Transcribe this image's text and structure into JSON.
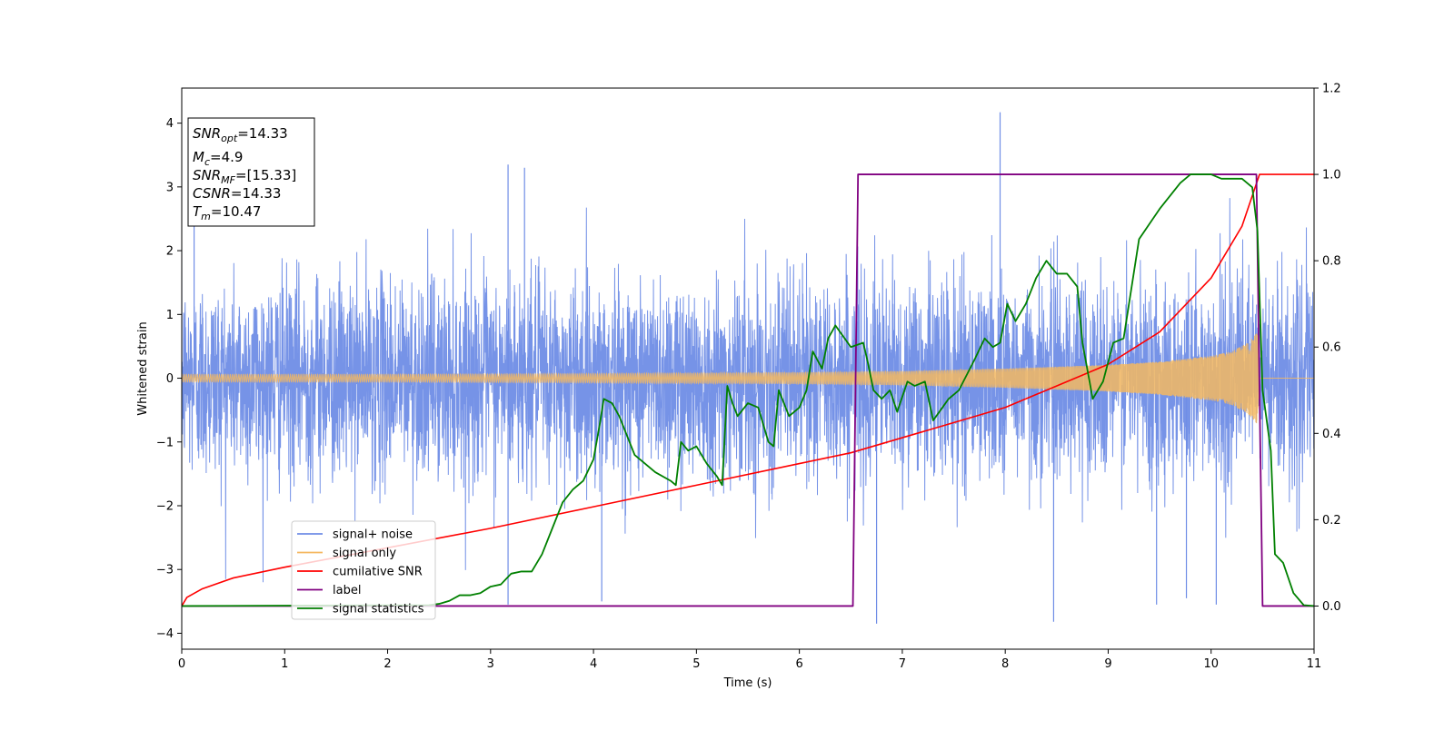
{
  "chart_data": {
    "type": "line",
    "xlabel": "Time (s)",
    "ylabel": "Whitened strain",
    "xlim": [
      0,
      11
    ],
    "ylim_left": [
      -4.25,
      4.55
    ],
    "ylim_right": [
      -0.1,
      1.2
    ],
    "x_ticks": [
      "0",
      "1",
      "2",
      "3",
      "4",
      "5",
      "6",
      "7",
      "8",
      "9",
      "10",
      "11"
    ],
    "y_left_ticks": [
      "4",
      "3",
      "2",
      "1",
      "0",
      "−1",
      "−2",
      "−3",
      "−4"
    ],
    "y_left_tick_values": [
      4,
      3,
      2,
      1,
      0,
      -1,
      -2,
      -3,
      -4
    ],
    "y_right_ticks": [
      "1.2",
      "1.0",
      "0.8",
      "0.6",
      "0.4",
      "0.2",
      "0.0"
    ],
    "y_right_tick_values": [
      1.2,
      1.0,
      0.8,
      0.6,
      0.4,
      0.2,
      0.0
    ],
    "annotation": [
      {
        "base": "SNR",
        "sub": "opt",
        "rest": "=14.33"
      },
      {
        "base": "M",
        "sub": "c",
        "rest": "=4.9"
      },
      {
        "base": "SNR",
        "sub": "MF",
        "rest": "=[15.33]"
      },
      {
        "base": "CSNR",
        "sub": "",
        "rest": "=14.33"
      },
      {
        "base": "T",
        "sub": "m",
        "rest": "=10.47"
      }
    ],
    "legend": [
      {
        "label": "signal+ noise",
        "color": "#6f8de6"
      },
      {
        "label": "signal only",
        "color": "#f5b860"
      },
      {
        "label": "cumilative SNR",
        "color": "#ff0000"
      },
      {
        "label": "label",
        "color": "#800080"
      },
      {
        "label": "signal statistics",
        "color": "#008000"
      }
    ],
    "series": [
      {
        "name": "signal+ noise",
        "axis": "left",
        "color": "#6f8de6",
        "description": "noisy whitened strain, roughly ±1.5 typical, peaks 4.17 at t≈7.95 and −3.85 at t≈6.75",
        "noise_std": 1.0,
        "peaks": [
          [
            0.12,
            2.9
          ],
          [
            3.17,
            3.35
          ],
          [
            3.33,
            3.3
          ],
          [
            7.95,
            4.17
          ],
          [
            3.17,
            -3.55
          ],
          [
            4.08,
            -3.5
          ],
          [
            6.75,
            -3.85
          ],
          [
            8.47,
            -3.82
          ],
          [
            9.47,
            -3.55
          ],
          [
            9.76,
            -3.45
          ],
          [
            10.05,
            -3.55
          ]
        ]
      },
      {
        "name": "signal only",
        "axis": "left",
        "color": "#f5b860",
        "envelope_x": [
          0,
          2,
          4,
          6,
          7,
          8,
          9,
          9.5,
          10,
          10.2,
          10.35,
          10.45,
          10.47,
          11
        ],
        "envelope_y": [
          0.06,
          0.06,
          0.07,
          0.09,
          0.11,
          0.15,
          0.21,
          0.26,
          0.35,
          0.42,
          0.55,
          0.72,
          0.0,
          0.0
        ]
      },
      {
        "name": "cumilative SNR",
        "axis": "right",
        "color": "#ff0000",
        "x": [
          0,
          0.05,
          0.2,
          0.5,
          1,
          2,
          3,
          4,
          5,
          6,
          6.5,
          7,
          8,
          9,
          9.5,
          10,
          10.3,
          10.47,
          11
        ],
        "y": [
          0.0,
          0.02,
          0.04,
          0.065,
          0.09,
          0.135,
          0.18,
          0.23,
          0.28,
          0.33,
          0.355,
          0.39,
          0.46,
          0.56,
          0.635,
          0.76,
          0.88,
          1.0,
          1.0
        ]
      },
      {
        "name": "label",
        "axis": "right",
        "color": "#800080",
        "x": [
          0,
          6.52,
          6.57,
          10.44,
          10.5,
          11
        ],
        "y": [
          0.0,
          0.0,
          1.0,
          1.0,
          0.0,
          0.0
        ]
      },
      {
        "name": "signal statistics",
        "axis": "right",
        "color": "#008000",
        "x": [
          0,
          2.4,
          2.5,
          2.6,
          2.7,
          2.8,
          2.9,
          3.0,
          3.1,
          3.2,
          3.3,
          3.4,
          3.5,
          3.6,
          3.7,
          3.8,
          3.9,
          4.0,
          4.06,
          4.1,
          4.18,
          4.25,
          4.4,
          4.5,
          4.6,
          4.75,
          4.8,
          4.85,
          4.92,
          5.0,
          5.1,
          5.2,
          5.25,
          5.3,
          5.35,
          5.4,
          5.5,
          5.6,
          5.7,
          5.75,
          5.8,
          5.9,
          6.0,
          6.07,
          6.13,
          6.22,
          6.28,
          6.35,
          6.5,
          6.62,
          6.66,
          6.72,
          6.8,
          6.88,
          6.95,
          7.05,
          7.12,
          7.22,
          7.3,
          7.45,
          7.55,
          7.7,
          7.8,
          7.88,
          7.95,
          8.02,
          8.1,
          8.2,
          8.3,
          8.4,
          8.5,
          8.6,
          8.7,
          8.75,
          8.85,
          8.95,
          9.05,
          9.15,
          9.3,
          9.5,
          9.7,
          9.8,
          10.0,
          10.1,
          10.2,
          10.3,
          10.4,
          10.45,
          10.5,
          10.58,
          10.62,
          10.7,
          10.8,
          10.9,
          11.0
        ],
        "y": [
          0.0,
          0.002,
          0.005,
          0.012,
          0.025,
          0.025,
          0.03,
          0.045,
          0.05,
          0.075,
          0.08,
          0.08,
          0.12,
          0.18,
          0.24,
          0.27,
          0.29,
          0.34,
          0.42,
          0.48,
          0.47,
          0.44,
          0.35,
          0.33,
          0.31,
          0.29,
          0.28,
          0.38,
          0.36,
          0.37,
          0.33,
          0.3,
          0.28,
          0.51,
          0.47,
          0.44,
          0.47,
          0.46,
          0.38,
          0.37,
          0.5,
          0.44,
          0.46,
          0.5,
          0.59,
          0.55,
          0.62,
          0.65,
          0.6,
          0.61,
          0.57,
          0.5,
          0.48,
          0.5,
          0.45,
          0.52,
          0.51,
          0.52,
          0.43,
          0.48,
          0.5,
          0.57,
          0.62,
          0.6,
          0.61,
          0.7,
          0.66,
          0.7,
          0.76,
          0.8,
          0.77,
          0.77,
          0.74,
          0.61,
          0.48,
          0.52,
          0.61,
          0.62,
          0.85,
          0.92,
          0.98,
          1.0,
          1.0,
          0.99,
          0.99,
          0.99,
          0.97,
          0.87,
          0.5,
          0.36,
          0.12,
          0.1,
          0.03,
          0.002,
          0.0
        ]
      }
    ],
    "grid": false,
    "legend_placement": "lower-left"
  }
}
